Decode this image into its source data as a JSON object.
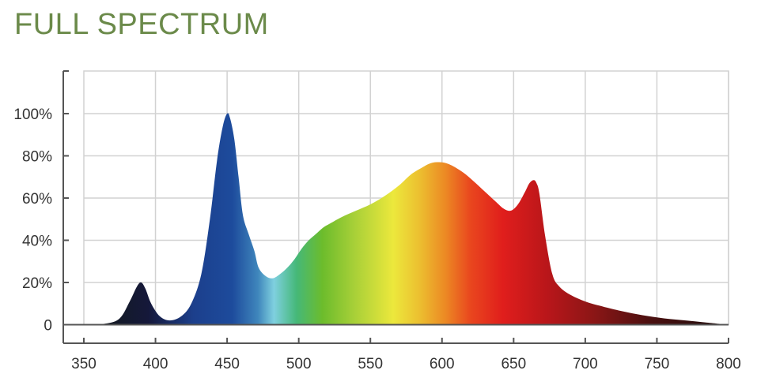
{
  "title": "FULL SPECTRUM",
  "colors": {
    "title": "#6b8a4a",
    "grid": "#d2d2d2",
    "axis": "#555555"
  },
  "chart_data": {
    "type": "area",
    "title": "FULL SPECTRUM",
    "xlabel": "",
    "ylabel": "",
    "xlim": [
      350,
      800
    ],
    "ylim": [
      0,
      120
    ],
    "grid": true,
    "x_ticks": [
      350,
      400,
      450,
      500,
      550,
      600,
      650,
      700,
      750,
      800
    ],
    "x_tick_labels": [
      "350",
      "400",
      "450",
      "500",
      "550",
      "600",
      "650",
      "700",
      "750",
      "800"
    ],
    "y_ticks": [
      0,
      20,
      40,
      60,
      80,
      100
    ],
    "y_tick_labels": [
      "0",
      "20%",
      "40%",
      "60%",
      "80%",
      "100%"
    ],
    "fill": "wavelength-color gradient",
    "series": [
      {
        "x": [
          350,
          365,
          375,
          382,
          387,
          390,
          393,
          397,
          403,
          410,
          418,
          425,
          432,
          438,
          443,
          447,
          450,
          452,
          455,
          458,
          461,
          465,
          469,
          472,
          477,
          482,
          487,
          492,
          497,
          502,
          507,
          512,
          517,
          522,
          530,
          540,
          550,
          560,
          570,
          578,
          585,
          592,
          598,
          603,
          608,
          615,
          622,
          630,
          638,
          643,
          648,
          653,
          658,
          661,
          664,
          666,
          668,
          672,
          677,
          682,
          690,
          700,
          710,
          725,
          740,
          755,
          770,
          785,
          800
        ],
        "y": [
          0,
          0.5,
          3,
          11,
          18,
          20,
          17,
          10,
          4,
          2,
          4,
          10,
          24,
          50,
          78,
          94,
          100,
          98,
          88,
          70,
          52,
          43,
          35,
          27,
          23,
          22,
          24,
          27,
          31,
          36,
          40,
          43,
          46,
          48,
          51,
          54,
          57,
          61,
          66,
          71,
          74,
          76.5,
          77,
          76.5,
          75,
          72,
          68,
          63,
          58,
          55,
          54,
          57,
          63,
          67,
          68.5,
          67,
          62,
          42,
          24,
          18,
          14,
          11,
          9,
          6.5,
          4.5,
          3,
          2,
          1,
          0
        ]
      }
    ]
  }
}
